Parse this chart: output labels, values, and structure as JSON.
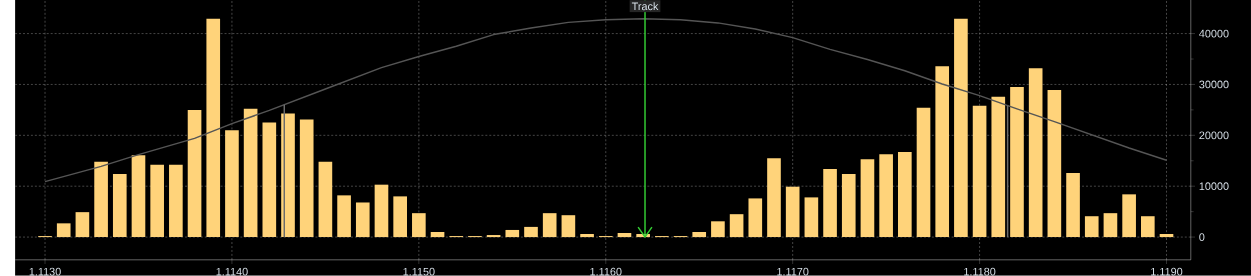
{
  "chart_data": {
    "type": "bar",
    "series": [
      {
        "color": "#ffd37a",
        "x": [
          1.113,
          1.1131,
          1.1132,
          1.1133,
          1.1134,
          1.1135,
          1.1136,
          1.1137,
          1.1138,
          1.1139,
          1.114,
          1.1141,
          1.1142,
          1.1143,
          1.1144,
          1.1145,
          1.1146,
          1.1147,
          1.1148,
          1.1149,
          1.115,
          1.1151,
          1.1152,
          1.1153,
          1.1154,
          1.1155,
          1.1156,
          1.1157,
          1.1158,
          1.1159,
          1.116,
          1.1161,
          1.1162,
          1.1163,
          1.1164,
          1.1165,
          1.1166,
          1.1167,
          1.1168,
          1.1169,
          1.117,
          1.1171,
          1.1172,
          1.1173,
          1.1174,
          1.1175,
          1.1176,
          1.1177,
          1.1178,
          1.1179,
          1.118,
          1.1181,
          1.1182,
          1.1183,
          1.1184,
          1.1185,
          1.1186,
          1.1187,
          1.1188,
          1.1189,
          1.119
        ],
        "values": [
          200,
          2700,
          4900,
          14800,
          12400,
          16100,
          14200,
          14200,
          25000,
          42900,
          21000,
          25200,
          22500,
          24300,
          23100,
          14800,
          8200,
          6800,
          10300,
          8000,
          4700,
          1000,
          200,
          200,
          400,
          1400,
          2000,
          4700,
          4300,
          600,
          200,
          800,
          600,
          200,
          200,
          1000,
          3100,
          4500,
          7600,
          15500,
          9900,
          7800,
          13400,
          12400,
          15300,
          16300,
          16700,
          25400,
          33600,
          42900,
          25800,
          27600,
          29500,
          33200,
          28900,
          12600,
          4100,
          4700,
          8400,
          4100,
          600
        ]
      },
      {
        "type": "line",
        "color": "#555555",
        "x": [
          1.113,
          1.1133,
          1.1135,
          1.1138,
          1.114,
          1.1142,
          1.1145,
          1.1148,
          1.115,
          1.1152,
          1.1154,
          1.1156,
          1.1158,
          1.116,
          1.1162,
          1.1164,
          1.1166,
          1.1168,
          1.117,
          1.1172,
          1.1174,
          1.1176,
          1.1178,
          1.118,
          1.1182,
          1.1184,
          1.1186,
          1.1188,
          1.119
        ],
        "values": [
          10900,
          13900,
          16200,
          19400,
          22300,
          24900,
          29100,
          33300,
          35500,
          37500,
          39800,
          41100,
          42200,
          42700,
          42900,
          42700,
          42100,
          40900,
          39200,
          36900,
          34900,
          32700,
          30100,
          27800,
          25200,
          22700,
          20100,
          17500,
          15100
        ]
      }
    ],
    "xlim": [
      1.11284,
      1.11913
    ],
    "ylim": [
      -4470,
      46600
    ],
    "xticks": [
      {
        "value": 1.113,
        "label": "1.1130"
      },
      {
        "value": 1.114,
        "label": "1.1140"
      },
      {
        "value": 1.115,
        "label": "1.1150"
      },
      {
        "value": 1.116,
        "label": "1.1160"
      },
      {
        "value": 1.117,
        "label": "1.1170"
      },
      {
        "value": 1.118,
        "label": "1.1180"
      },
      {
        "value": 1.119,
        "label": "1.1190"
      }
    ],
    "yticks": [
      0,
      10000,
      20000,
      30000,
      40000
    ],
    "grid": true,
    "ref_lines": [
      {
        "axis": "x",
        "value": 1.11428,
        "color": "#6b6b6b"
      },
      {
        "axis": "x",
        "value": 1.11815,
        "color": "#6b6b6b"
      },
      {
        "axis": "x",
        "value": 1.11621,
        "label": "Track",
        "color": "#33cc33"
      }
    ]
  }
}
